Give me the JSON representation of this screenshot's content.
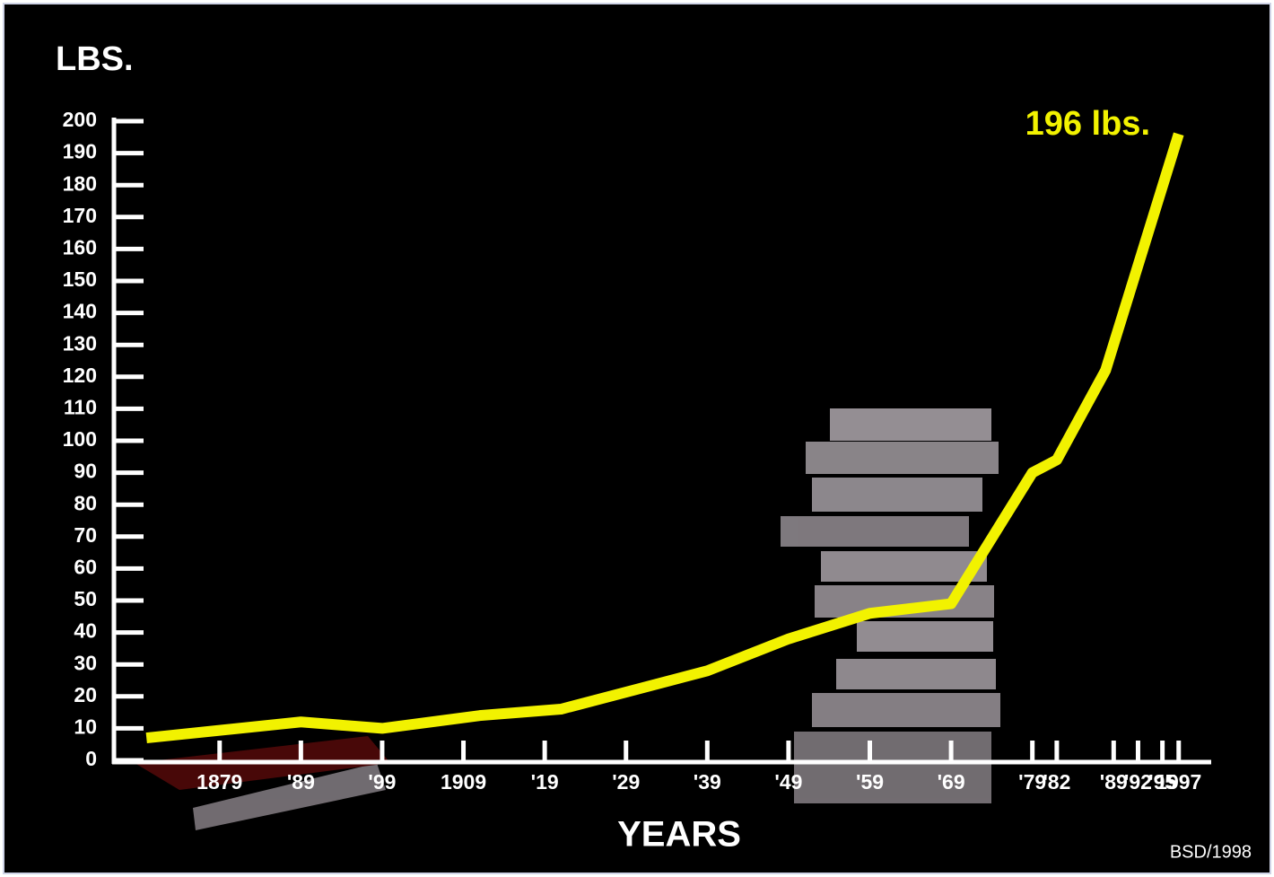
{
  "chart_data": {
    "type": "line",
    "y_label": "LBS.",
    "x_label": "YEARS",
    "annotation": "196 lbs.",
    "credit": "BSD/1998",
    "x": [
      1870,
      1889,
      1899,
      1911,
      1921,
      1939,
      1949,
      1959,
      1969,
      1979,
      1982,
      1988,
      1997
    ],
    "values": [
      7,
      12,
      10,
      14,
      16,
      28,
      38,
      46,
      49,
      90,
      94,
      122,
      196
    ],
    "color": "#f2f200",
    "xlim": [
      1866,
      2001
    ],
    "xticks": [
      {
        "value": 1879,
        "label": "1879"
      },
      {
        "value": 1889,
        "label": "'89"
      },
      {
        "value": 1899,
        "label": "'99"
      },
      {
        "value": 1909,
        "label": "1909"
      },
      {
        "value": 1919,
        "label": "'19"
      },
      {
        "value": 1929,
        "label": "'29"
      },
      {
        "value": 1939,
        "label": "'39"
      },
      {
        "value": 1949,
        "label": "'49"
      },
      {
        "value": 1959,
        "label": "'59"
      },
      {
        "value": 1969,
        "label": "'69"
      },
      {
        "value": 1979,
        "label": "'79"
      },
      {
        "value": 1982,
        "label": "'82"
      },
      {
        "value": 1989,
        "label": "'89"
      },
      {
        "value": 1992,
        "label": "'92"
      },
      {
        "value": 1995,
        "label": "'95"
      },
      {
        "value": 1997,
        "label": "1997"
      }
    ],
    "ylim": [
      0,
      200
    ],
    "yticks": [
      0,
      10,
      20,
      30,
      40,
      50,
      60,
      70,
      80,
      90,
      100,
      110,
      120,
      130,
      140,
      150,
      160,
      170,
      180,
      190,
      200
    ]
  }
}
